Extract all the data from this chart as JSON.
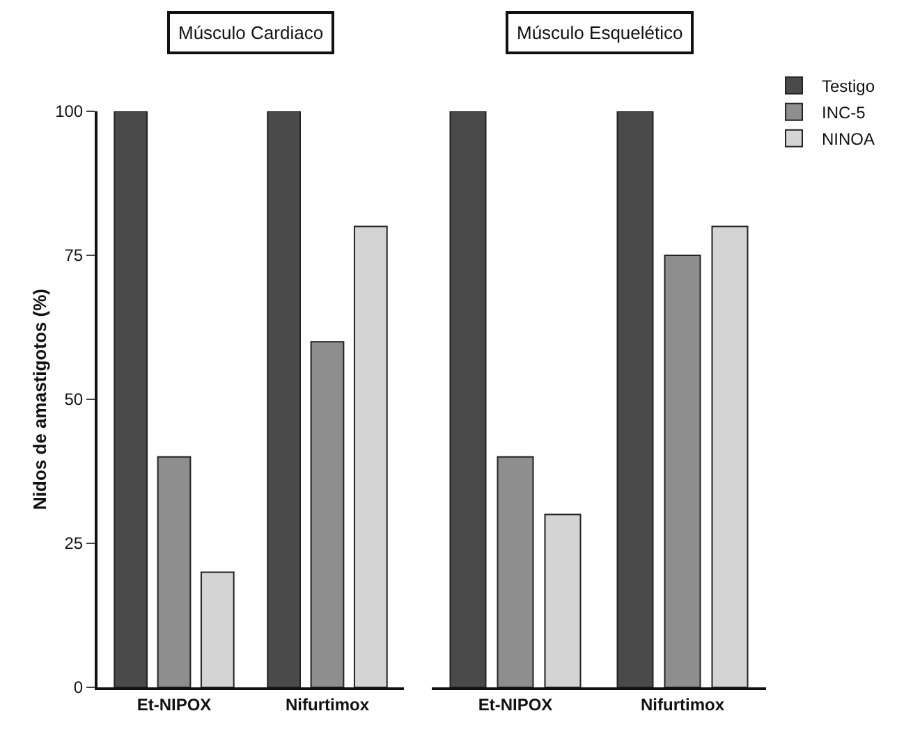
{
  "chart_data": [
    {
      "type": "bar",
      "title": "Músculo Cardiaco",
      "ylabel": "Nidos de amastigotos (%)",
      "categories": [
        "Et-NIPOX",
        "Nifurtimox"
      ],
      "ylim": [
        0,
        100
      ],
      "yticks": [
        0,
        25,
        50,
        75,
        100
      ],
      "grid": false,
      "series": [
        {
          "color": "#4a4a4a",
          "values": [
            100,
            100
          ]
        },
        {
          "color": "#8e8e8e",
          "values": [
            40,
            60
          ]
        },
        {
          "color": "#d4d4d4",
          "values": [
            20,
            80
          ]
        }
      ]
    },
    {
      "type": "bar",
      "title": "Músculo Esquelético",
      "categories": [
        "Et-NIPOX",
        "Nifurtimox"
      ],
      "ylim": [
        0,
        100
      ],
      "tick_labels": "x",
      "grid": false,
      "legend": "top right",
      "series": [
        {
          "name": "Testigo",
          "color": "#4a4a4a",
          "values": [
            100,
            100
          ]
        },
        {
          "name": "INC-5",
          "color": "#8e8e8e",
          "values": [
            40,
            75
          ]
        },
        {
          "name": "NINOA",
          "color": "#d4d4d4",
          "values": [
            30,
            80
          ]
        }
      ]
    }
  ]
}
